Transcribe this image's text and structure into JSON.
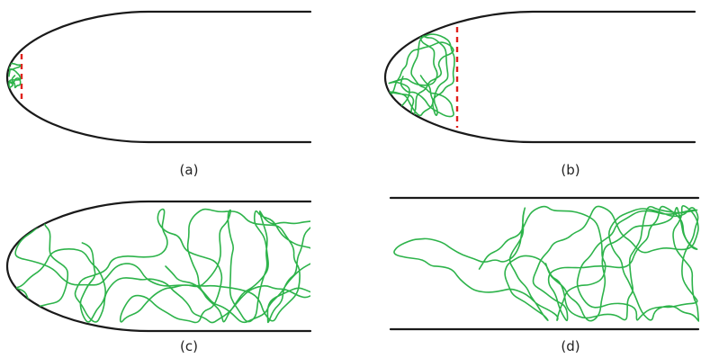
{
  "panels": [
    {
      "id": "a",
      "caption": "(a)"
    },
    {
      "id": "b",
      "caption": "(b)"
    },
    {
      "id": "c",
      "caption": "(c)"
    },
    {
      "id": "d",
      "caption": "(d)"
    }
  ],
  "colors": {
    "wall": "#1a1a1a",
    "polymer_chain": "#2db34a",
    "front_marker": "#e0201b"
  }
}
